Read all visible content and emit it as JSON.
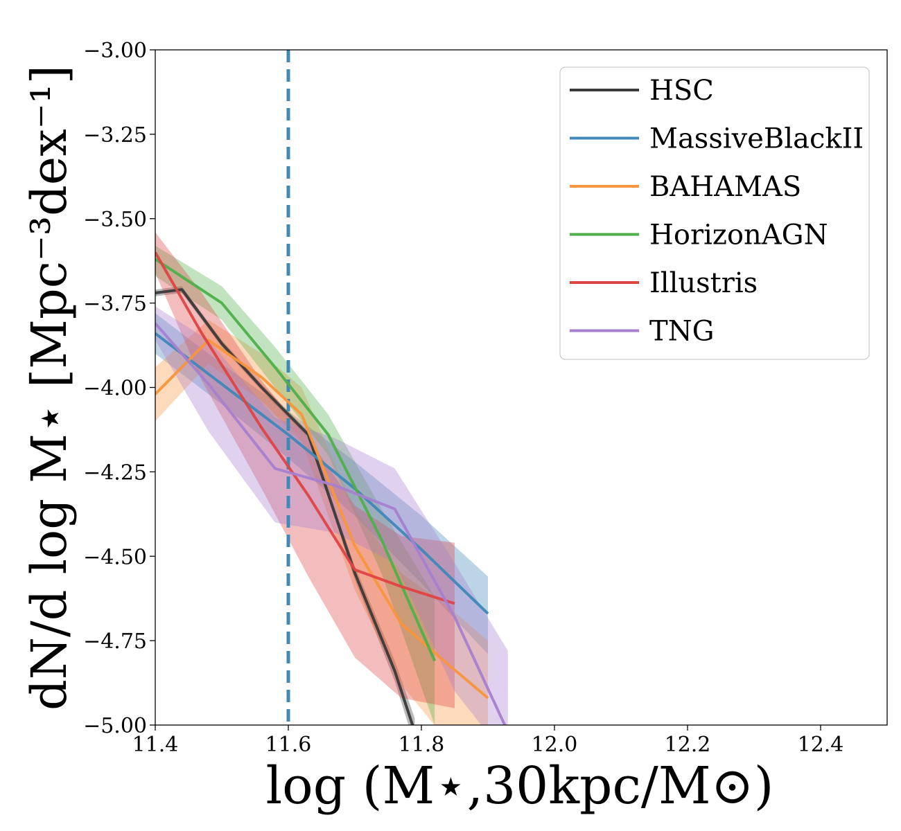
{
  "chart_data": {
    "type": "line",
    "xlabel": "log (M⋆,30kpc/M⊙)",
    "ylabel": "dN/d log M⋆ [Mpc⁻³dex⁻¹]",
    "xlim": [
      11.4,
      12.5
    ],
    "ylim": [
      -5.0,
      -3.0
    ],
    "x_ticks": [
      "11.4",
      "11.6",
      "11.8",
      "12.0",
      "12.2",
      "12.4"
    ],
    "y_ticks": [
      "−3.00",
      "−3.25",
      "−3.50",
      "−3.75",
      "−4.00",
      "−4.25",
      "−4.50",
      "−4.75",
      "−5.00"
    ],
    "grid": false,
    "legend_position": "top-right",
    "reference_line": {
      "x": 11.6,
      "style": "dashed",
      "color": "#3f88b8"
    },
    "series": [
      {
        "name": "HSC",
        "color": "#3a3a3a",
        "x": [
          11.4,
          11.44,
          11.5,
          11.56,
          11.63,
          11.7,
          11.76,
          11.79
        ],
        "y": [
          -3.72,
          -3.71,
          -3.87,
          -4.0,
          -4.14,
          -4.55,
          -4.84,
          -5.02
        ],
        "lower": [
          -3.73,
          -3.72,
          -3.88,
          -4.01,
          -4.15,
          -4.57,
          -4.87,
          -5.06
        ],
        "upper": [
          -3.71,
          -3.7,
          -3.86,
          -3.99,
          -4.13,
          -4.53,
          -4.81,
          -4.98
        ]
      },
      {
        "name": "MassiveBlackII",
        "color": "#3f88b8",
        "x": [
          11.4,
          11.5,
          11.6,
          11.7,
          11.8,
          11.9
        ],
        "y": [
          -3.84,
          -3.99,
          -4.14,
          -4.3,
          -4.48,
          -4.67
        ],
        "lower": [
          -3.9,
          -4.05,
          -4.21,
          -4.38,
          -4.58,
          -4.79
        ],
        "upper": [
          -3.78,
          -3.93,
          -4.07,
          -4.22,
          -4.38,
          -4.56
        ]
      },
      {
        "name": "BAHAMAS",
        "color": "#f9953c",
        "x": [
          11.4,
          11.48,
          11.56,
          11.62,
          11.7,
          11.77,
          11.84,
          11.9
        ],
        "y": [
          -4.02,
          -3.86,
          -3.97,
          -4.08,
          -4.47,
          -4.7,
          -4.82,
          -4.92
        ],
        "lower": [
          -4.1,
          -3.93,
          -4.04,
          -4.16,
          -4.6,
          -4.88,
          -5.05,
          -5.15
        ],
        "upper": [
          -3.94,
          -3.8,
          -3.9,
          -4.0,
          -4.36,
          -4.55,
          -4.65,
          -4.75
        ]
      },
      {
        "name": "HorizonAGN",
        "color": "#4faf4a",
        "x": [
          11.4,
          11.5,
          11.58,
          11.66,
          11.74,
          11.82
        ],
        "y": [
          -3.62,
          -3.75,
          -3.94,
          -4.14,
          -4.45,
          -4.81
        ],
        "lower": [
          -3.67,
          -3.8,
          -4.0,
          -4.2,
          -4.55,
          -5.0
        ],
        "upper": [
          -3.58,
          -3.7,
          -3.88,
          -4.08,
          -4.36,
          -4.62
        ]
      },
      {
        "name": "Illustris",
        "color": "#de4343",
        "x": [
          11.4,
          11.47,
          11.56,
          11.63,
          11.7,
          11.77,
          11.85
        ],
        "y": [
          -3.6,
          -3.84,
          -4.12,
          -4.32,
          -4.54,
          -4.59,
          -4.64
        ],
        "lower": [
          -3.66,
          -3.98,
          -4.3,
          -4.56,
          -4.8,
          -4.92,
          -4.95
        ],
        "upper": [
          -3.54,
          -3.72,
          -3.98,
          -4.15,
          -4.35,
          -4.44,
          -4.46
        ]
      },
      {
        "name": "TNG",
        "color": "#a67fcf",
        "x": [
          11.4,
          11.48,
          11.58,
          11.67,
          11.76,
          11.85,
          11.93
        ],
        "y": [
          -3.81,
          -3.99,
          -4.24,
          -4.29,
          -4.36,
          -4.68,
          -5.02
        ],
        "lower": [
          -3.86,
          -4.13,
          -4.4,
          -4.43,
          -4.52,
          -4.9,
          -5.1
        ],
        "upper": [
          -3.76,
          -3.86,
          -4.09,
          -4.15,
          -4.24,
          -4.52,
          -4.78
        ]
      }
    ]
  }
}
